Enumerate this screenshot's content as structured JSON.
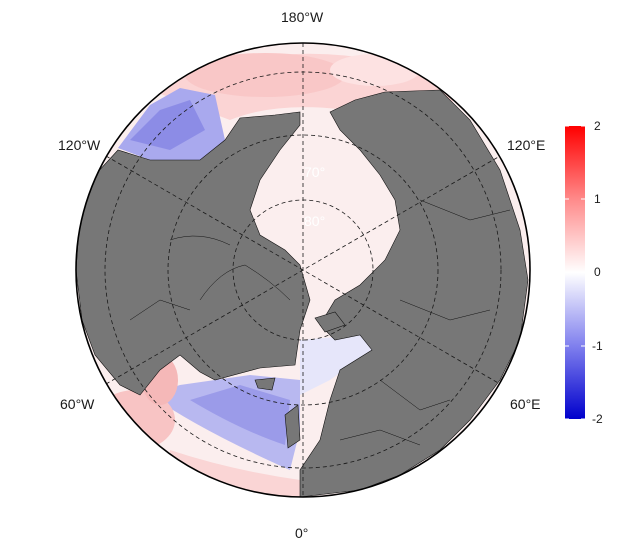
{
  "map": {
    "projection": "north polar stereographic",
    "longitude_labels": {
      "top": "180°W",
      "bottom": "0°",
      "upper_left": "120°W",
      "upper_right": "120°E",
      "lower_left": "60°W",
      "lower_right": "60°E"
    },
    "latitude_labels": [
      "70°",
      "80°"
    ],
    "land_color": "#777777",
    "graticule_latitudes": [
      60,
      70,
      80
    ],
    "graticule_meridians_every_deg": 60
  },
  "colorbar": {
    "ticks": [
      "2",
      "1",
      "0",
      "-1",
      "-2"
    ],
    "min": -2,
    "max": 2,
    "colors": {
      "low": "#0000cc",
      "mid": "#ffffff",
      "high": "#ff0000"
    }
  }
}
